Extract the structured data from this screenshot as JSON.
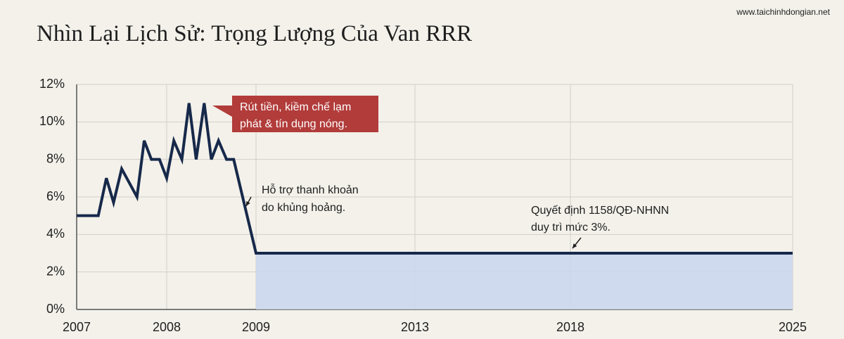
{
  "chart_data": {
    "type": "line",
    "title": "Nhìn Lại Lịch Sử: Trọng Lượng Của Van RRR",
    "source": "www.taichinhdongian.net",
    "x": [
      2007,
      2007.24,
      2007.33,
      2007.41,
      2007.5,
      2007.67,
      2007.75,
      2007.83,
      2007.92,
      2008,
      2008.08,
      2008.17,
      2008.25,
      2008.33,
      2008.42,
      2008.5,
      2008.58,
      2008.67,
      2008.75,
      2009,
      2025
    ],
    "series": [
      {
        "color": "#17294a",
        "values": [
          5,
          5,
          7,
          5.7,
          7.5,
          6,
          9,
          8,
          8,
          7,
          9,
          8,
          11,
          8,
          11,
          8,
          9,
          8,
          8,
          3,
          3
        ]
      }
    ],
    "fill_from": 2009,
    "fill_color": "#c9d6ef",
    "xticks": [
      2007,
      2008,
      2009,
      2013,
      2018,
      2025
    ],
    "ylim": [
      0,
      12
    ],
    "yticks": [
      {
        "value": 0,
        "label": "0%"
      },
      {
        "value": 2,
        "label": "2%"
      },
      {
        "value": 4,
        "label": "4%"
      },
      {
        "value": 6,
        "label": "6%"
      },
      {
        "value": 8,
        "label": "8%"
      },
      {
        "value": 10,
        "label": "10%"
      },
      {
        "value": 12,
        "label": "12%"
      }
    ],
    "grid": true,
    "annotations": [
      {
        "lines": [
          "Rút tiền, kiềm chế lạm",
          "phát & tín dụng nóng."
        ]
      },
      {
        "lines": [
          "Hỗ trợ thanh khoản",
          "do khủng hoảng."
        ]
      },
      {
        "lines": [
          "Quyết định 1158/QĐ-NHNN",
          "duy trì mức 3%."
        ]
      }
    ]
  }
}
